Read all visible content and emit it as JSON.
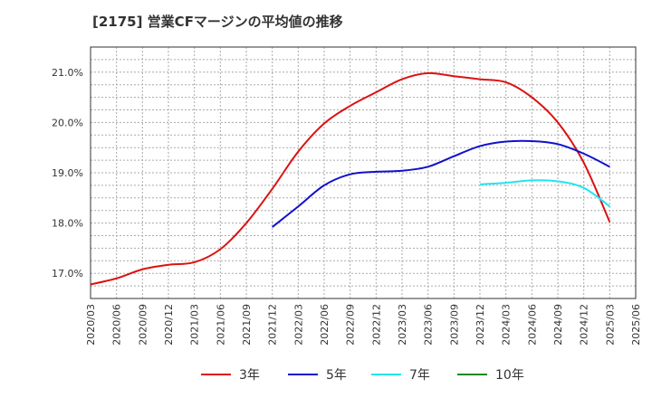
{
  "chart_data": {
    "type": "line",
    "title": "[2175]  営業CFマージンの平均値の推移",
    "x": [
      "2020/03",
      "2020/06",
      "2020/09",
      "2020/12",
      "2021/03",
      "2021/06",
      "2021/09",
      "2021/12",
      "2022/03",
      "2022/06",
      "2022/09",
      "2022/12",
      "2023/03",
      "2023/06",
      "2023/09",
      "2023/12",
      "2024/03",
      "2024/06",
      "2024/09",
      "2024/12",
      "2025/03",
      "2025/06"
    ],
    "ytick_labels": [
      "17.0%",
      "18.0%",
      "19.0%",
      "20.0%",
      "21.0%"
    ],
    "ylim": [
      16.5,
      21.5
    ],
    "grid": true,
    "legend_position": "bottom",
    "series": [
      {
        "name": "3年",
        "color": "#dd1111",
        "values": [
          16.78,
          16.9,
          17.08,
          17.17,
          17.22,
          17.48,
          18.0,
          18.68,
          19.42,
          19.98,
          20.33,
          20.6,
          20.86,
          20.98,
          20.92,
          20.86,
          20.8,
          20.5,
          20.0,
          19.2,
          18.02,
          null
        ]
      },
      {
        "name": "5年",
        "color": "#1111cc",
        "values": [
          null,
          null,
          null,
          null,
          null,
          null,
          null,
          17.92,
          18.33,
          18.75,
          18.97,
          19.02,
          19.04,
          19.12,
          19.33,
          19.53,
          19.62,
          19.63,
          19.57,
          19.38,
          19.12,
          null
        ]
      },
      {
        "name": "7年",
        "color": "#22e5ee",
        "values": [
          null,
          null,
          null,
          null,
          null,
          null,
          null,
          null,
          null,
          null,
          null,
          null,
          null,
          null,
          null,
          18.77,
          18.8,
          18.85,
          18.83,
          18.7,
          18.33,
          null
        ]
      },
      {
        "name": "10年",
        "color": "#228822",
        "values": [
          null,
          null,
          null,
          null,
          null,
          null,
          null,
          null,
          null,
          null,
          null,
          null,
          null,
          null,
          null,
          null,
          null,
          null,
          null,
          null,
          null,
          null
        ]
      }
    ]
  }
}
